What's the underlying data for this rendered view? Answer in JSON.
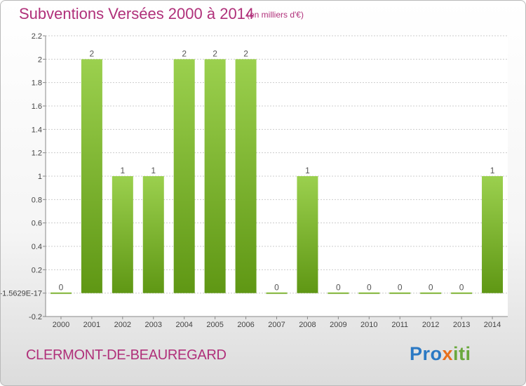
{
  "title": "Subventions Versées 2000 à 2014",
  "subtitle": "(en milliers d'€)",
  "commune": "CLERMONT-DE-BEAUREGARD",
  "logo": {
    "p1": "Pro",
    "p2": "x",
    "p3": "iti"
  },
  "colors": {
    "title": "#b0307a",
    "bar_top": "#9bd04e",
    "bar_bottom": "#5f9714",
    "grid": "#cccccc"
  },
  "chart_data": {
    "type": "bar",
    "title": "Subventions Versées 2000 à 2014",
    "categories": [
      "2000",
      "2001",
      "2002",
      "2003",
      "2004",
      "2005",
      "2006",
      "2007",
      "2008",
      "2009",
      "2010",
      "2011",
      "2012",
      "2013",
      "2014"
    ],
    "values": [
      0,
      2,
      1,
      1,
      2,
      2,
      2,
      0,
      1,
      0,
      0,
      0,
      0,
      0,
      1
    ],
    "data_labels": [
      "0",
      "2",
      "1",
      "1",
      "2",
      "2",
      "2",
      "0",
      "1",
      "0",
      "0",
      "0",
      "0",
      "0",
      "1"
    ],
    "ylim": [
      -0.2,
      2.2
    ],
    "yticks": [
      -0.2,
      0,
      0.2,
      0.4,
      0.6,
      0.8,
      1,
      1.2,
      1.4,
      1.6,
      1.8,
      2,
      2.2
    ],
    "ytick_labels": [
      "-0.2",
      "-1.5629E-17",
      "0.2",
      "0.4",
      "0.6",
      "0.8",
      "1",
      "1.2",
      "1.4",
      "1.6",
      "1.8",
      "2",
      "2.2"
    ],
    "grid": true,
    "legend": "none"
  }
}
